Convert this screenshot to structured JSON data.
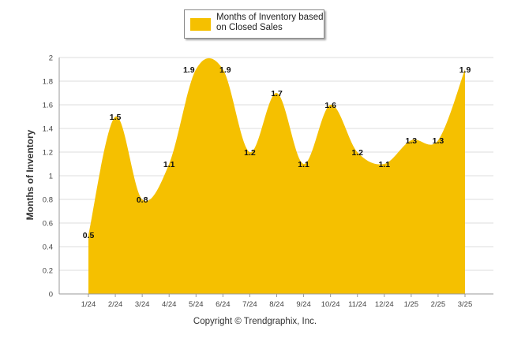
{
  "chart_data": {
    "type": "area",
    "categories": [
      "1/24",
      "2/24",
      "3/24",
      "4/24",
      "5/24",
      "6/24",
      "7/24",
      "8/24",
      "9/24",
      "10/24",
      "11/24",
      "12/24",
      "1/25",
      "2/25",
      "3/25"
    ],
    "series": [
      {
        "name": "Months of Inventory based on Closed Sales",
        "values": [
          0.5,
          1.5,
          0.8,
          1.1,
          1.9,
          1.9,
          1.2,
          1.7,
          1.1,
          1.6,
          1.2,
          1.1,
          1.3,
          1.3,
          1.9
        ],
        "color": "#F5C000"
      }
    ],
    "ylabel": "Months of Inventory",
    "xlabel": "",
    "ylim": [
      0,
      2
    ],
    "yticks": [
      "0",
      "0.2",
      "0.4",
      "0.6",
      "0.8",
      "1",
      "1.2",
      "1.4",
      "1.6",
      "1.8",
      "2"
    ],
    "grid": true,
    "legend_position": "top-center"
  },
  "legend": {
    "label": "Months of Inventory based on Closed Sales",
    "color": "#F5C000"
  },
  "footer": {
    "copyright": "Copyright © Trendgraphix, Inc."
  }
}
